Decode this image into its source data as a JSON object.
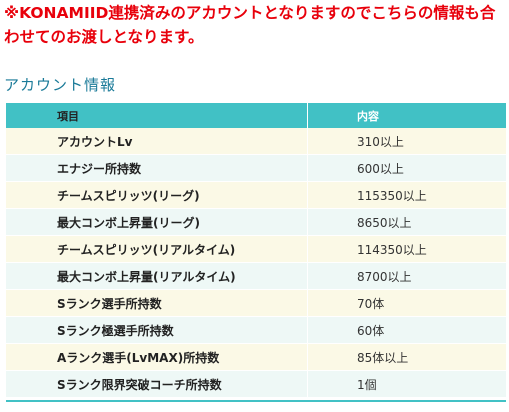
{
  "notice": "※KONAMIID連携済みのアカウントとなりますのでこちらの情報も合わせてのお渡しとなります。",
  "section_title": "アカウント情報",
  "table": {
    "headers": {
      "item": "項目",
      "content": "内容"
    },
    "rows": [
      {
        "item": "アカウントLv",
        "value": "310以上"
      },
      {
        "item": "エナジー所持数",
        "value": "600以上"
      },
      {
        "item": "チームスピリッツ(リーグ)",
        "value": "115350以上"
      },
      {
        "item": "最大コンボ上昇量(リーグ)",
        "value": "8650以上"
      },
      {
        "item": "チームスピリッツ(リアルタイム)",
        "value": "114350以上"
      },
      {
        "item": "最大コンボ上昇量(リアルタイム)",
        "value": "8700以上"
      },
      {
        "item": "Sランク選手所持数",
        "value": "70体"
      },
      {
        "item": "Sランク極選手所持数",
        "value": "60体"
      },
      {
        "item": "Aランク選手(LvMAX)所持数",
        "value": "85体以上"
      },
      {
        "item": "Sランク限界突破コーチ所持数",
        "value": "1個"
      }
    ]
  },
  "colors": {
    "notice_red": "#e8000b",
    "title_blue": "#1a7a98",
    "header_teal": "#41c1c5",
    "row_cream": "#fbf9e6",
    "row_mint": "#eef8f6"
  }
}
